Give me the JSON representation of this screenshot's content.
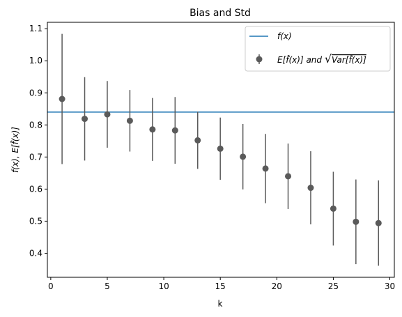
{
  "chart_data": {
    "type": "scatter",
    "title": "Bias and Std",
    "xlabel": "k",
    "ylabel": "f(x), E[f̂(x)]",
    "xlim": [
      -0.3,
      30.4
    ],
    "ylim": [
      0.325,
      1.12
    ],
    "xticks": [
      0,
      5,
      10,
      15,
      20,
      25,
      30
    ],
    "yticks": [
      0.4,
      0.5,
      0.6,
      0.7,
      0.8,
      0.9,
      1.0,
      1.1
    ],
    "xtick_labels": [
      "0",
      "5",
      "10",
      "15",
      "20",
      "25",
      "30"
    ],
    "ytick_labels": [
      "0.4",
      "0.5",
      "0.6",
      "0.7",
      "0.8",
      "0.9",
      "1.0",
      "1.1"
    ],
    "grid": false,
    "legend_position": "top-right",
    "true_value": 0.84,
    "series": [
      {
        "name": "E[f̂(x)] and √Var[f̂(x)]",
        "kind": "errorbar",
        "color": "#5a5a5a",
        "x": [
          1,
          3,
          5,
          7,
          9,
          11,
          13,
          15,
          17,
          19,
          21,
          23,
          25,
          27,
          29
        ],
        "y": [
          0.881,
          0.819,
          0.833,
          0.813,
          0.786,
          0.783,
          0.752,
          0.726,
          0.701,
          0.664,
          0.64,
          0.604,
          0.539,
          0.498,
          0.494
        ],
        "err": [
          0.203,
          0.13,
          0.104,
          0.096,
          0.098,
          0.104,
          0.089,
          0.097,
          0.102,
          0.108,
          0.102,
          0.114,
          0.115,
          0.132,
          0.133
        ]
      },
      {
        "name": "f(x)",
        "kind": "hline",
        "color": "#1f77b4",
        "y": 0.84
      }
    ]
  },
  "legend": {
    "line_label": "f(x)",
    "errorbar_label_prefix": "E[f̂(x)] and ",
    "errorbar_label_root": "Var[f̂(x)]"
  }
}
